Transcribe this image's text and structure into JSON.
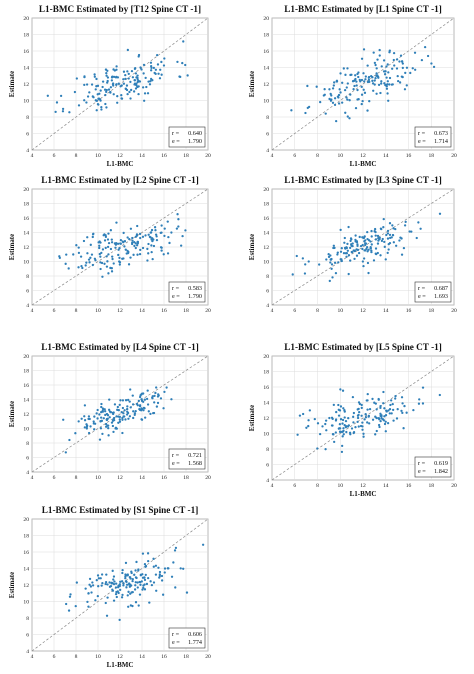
{
  "chart_data": [
    {
      "type": "scatter",
      "title": "L1-BMC Estimated by [T12 Spine CT -1]",
      "xlabel": "L1-BMC",
      "ylabel": "Estimate",
      "xlim": [
        4,
        20
      ],
      "ylim": [
        4,
        20
      ],
      "xticks": [
        "4",
        "6",
        "8",
        "10",
        "12",
        "14",
        "16",
        "18",
        "20"
      ],
      "yticks": [
        "4",
        "6",
        "8",
        "10",
        "12",
        "14",
        "16",
        "18",
        "20"
      ],
      "identity_line": true,
      "grid": true,
      "stats": {
        "r_label": "r =",
        "r": "0.640",
        "e_label": "e =",
        "e": "1.790"
      },
      "point_color": "#2f7fb8",
      "seed": 11,
      "slope": 0.41,
      "intercept": 7.1,
      "noise": 1.4,
      "has_title": true,
      "has_xlabel": true,
      "has_ylabel": true
    },
    {
      "type": "scatter",
      "title": "L1-BMC Estimated by [L1 Spine CT -1]",
      "xlabel": "L1-BMC",
      "ylabel": "Estimate",
      "xlim": [
        4,
        20
      ],
      "ylim": [
        4,
        20
      ],
      "xticks": [
        "4",
        "6",
        "8",
        "10",
        "12",
        "14",
        "16",
        "18",
        "20"
      ],
      "yticks": [
        "4",
        "6",
        "8",
        "10",
        "12",
        "14",
        "16",
        "18",
        "20"
      ],
      "identity_line": true,
      "grid": true,
      "stats": {
        "r_label": "r =",
        "r": "0.673",
        "e_label": "e =",
        "e": "1.714"
      },
      "point_color": "#2f7fb8",
      "seed": 23,
      "slope": 0.45,
      "intercept": 6.6,
      "noise": 1.35,
      "has_title": true,
      "has_xlabel": true,
      "has_ylabel": true
    },
    {
      "type": "scatter",
      "title": "L1-BMC Estimated by [L2 Spine CT -1]",
      "xlabel": "",
      "ylabel": "Estimate",
      "xlim": [
        4,
        20
      ],
      "ylim": [
        4,
        20
      ],
      "xticks": [
        "4",
        "6",
        "8",
        "10",
        "12",
        "14",
        "16",
        "18",
        "20"
      ],
      "yticks": [
        "4",
        "6",
        "8",
        "10",
        "12",
        "14",
        "16",
        "18",
        "20"
      ],
      "identity_line": true,
      "grid": true,
      "stats": {
        "r_label": "r =",
        "r": "0.583",
        "e_label": "e =",
        "e": "1.790"
      },
      "point_color": "#2f7fb8",
      "seed": 37,
      "slope": 0.38,
      "intercept": 7.4,
      "noise": 1.45,
      "has_title": true,
      "has_xlabel": false,
      "has_ylabel": true
    },
    {
      "type": "scatter",
      "title": "L1-BMC Estimated by [L3 Spine CT -1]",
      "xlabel": "",
      "ylabel": "Estimate",
      "xlim": [
        4,
        20
      ],
      "ylim": [
        4,
        20
      ],
      "xticks": [
        "4",
        "6",
        "8",
        "10",
        "12",
        "14",
        "16",
        "18",
        "20"
      ],
      "yticks": [
        "4",
        "6",
        "8",
        "10",
        "12",
        "14",
        "16",
        "18",
        "20"
      ],
      "identity_line": true,
      "grid": true,
      "stats": {
        "r_label": "r =",
        "r": "0.687",
        "e_label": "e =",
        "e": "1.693"
      },
      "point_color": "#2f7fb8",
      "seed": 53,
      "slope": 0.5,
      "intercept": 6.0,
      "noise": 1.35,
      "has_title": true,
      "has_xlabel": false,
      "has_ylabel": true
    },
    {
      "type": "scatter",
      "title": "L1-BMC Estimated by [L4 Spine CT -1]",
      "xlabel": "",
      "ylabel": "Estimate",
      "xlim": [
        4,
        20
      ],
      "ylim": [
        4,
        20
      ],
      "xticks": [
        "4",
        "6",
        "8",
        "10",
        "12",
        "14",
        "16",
        "18",
        "20"
      ],
      "yticks": [
        "4",
        "6",
        "8",
        "10",
        "12",
        "14",
        "16",
        "18",
        "20"
      ],
      "identity_line": true,
      "grid": true,
      "stats": {
        "r_label": "r =",
        "r": "0.721",
        "e_label": "e =",
        "e": "1.568"
      },
      "point_color": "#2f7fb8",
      "seed": 71,
      "slope": 0.55,
      "intercept": 5.4,
      "noise": 1.25,
      "has_title": true,
      "has_xlabel": false,
      "has_ylabel": true
    },
    {
      "type": "scatter",
      "title": "L1-BMC Estimated by [L5 Spine CT -1]",
      "xlabel": "L1-BMC",
      "ylabel": "Estimate",
      "xlim": [
        4,
        20
      ],
      "ylim": [
        4,
        20
      ],
      "xticks": [
        "4",
        "6",
        "8",
        "10",
        "12",
        "14",
        "16",
        "18",
        "20"
      ],
      "yticks": [
        "4",
        "6",
        "8",
        "10",
        "12",
        "14",
        "16",
        "18",
        "20"
      ],
      "identity_line": true,
      "grid": true,
      "stats": {
        "r_label": "r =",
        "r": "0.619",
        "e_label": "e =",
        "e": "1.842"
      },
      "point_color": "#2f7fb8",
      "seed": 89,
      "slope": 0.4,
      "intercept": 7.3,
      "noise": 1.45,
      "has_title": true,
      "has_xlabel": true,
      "has_ylabel": true
    },
    {
      "type": "scatter",
      "title": "L1-BMC Estimated by [S1 Spine CT -1]",
      "xlabel": "L1-BMC",
      "ylabel": "Estimate",
      "xlim": [
        4,
        20
      ],
      "ylim": [
        4,
        20
      ],
      "xticks": [
        "4",
        "6",
        "8",
        "10",
        "12",
        "14",
        "16",
        "18",
        "20"
      ],
      "yticks": [
        "4",
        "6",
        "8",
        "10",
        "12",
        "14",
        "16",
        "18",
        "20"
      ],
      "identity_line": true,
      "grid": true,
      "stats": {
        "r_label": "r =",
        "r": "0.606",
        "e_label": "e =",
        "e": "1.774"
      },
      "point_color": "#2f7fb8",
      "seed": 97,
      "slope": 0.41,
      "intercept": 7.0,
      "noise": 1.4,
      "has_title": true,
      "has_xlabel": true,
      "has_ylabel": true
    }
  ]
}
